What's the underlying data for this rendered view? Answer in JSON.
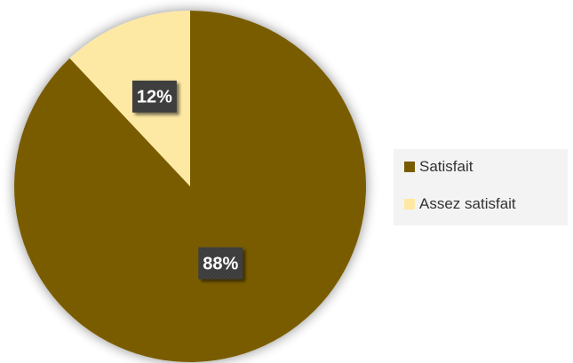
{
  "chart_data": {
    "type": "pie",
    "categories": [
      "Satisfait",
      "Assez satisfait"
    ],
    "values": [
      88,
      12
    ],
    "data_labels": [
      "88%",
      "12%"
    ],
    "colors": [
      "#7a5c00",
      "#fde9a3"
    ],
    "start_angle": "top, clockwise",
    "legend_position": "right",
    "title": ""
  },
  "legend": {
    "items": [
      {
        "label": "Satisfait",
        "color": "#7a5c00"
      },
      {
        "label": "Assez satisfait",
        "color": "#fde9a3"
      }
    ]
  }
}
